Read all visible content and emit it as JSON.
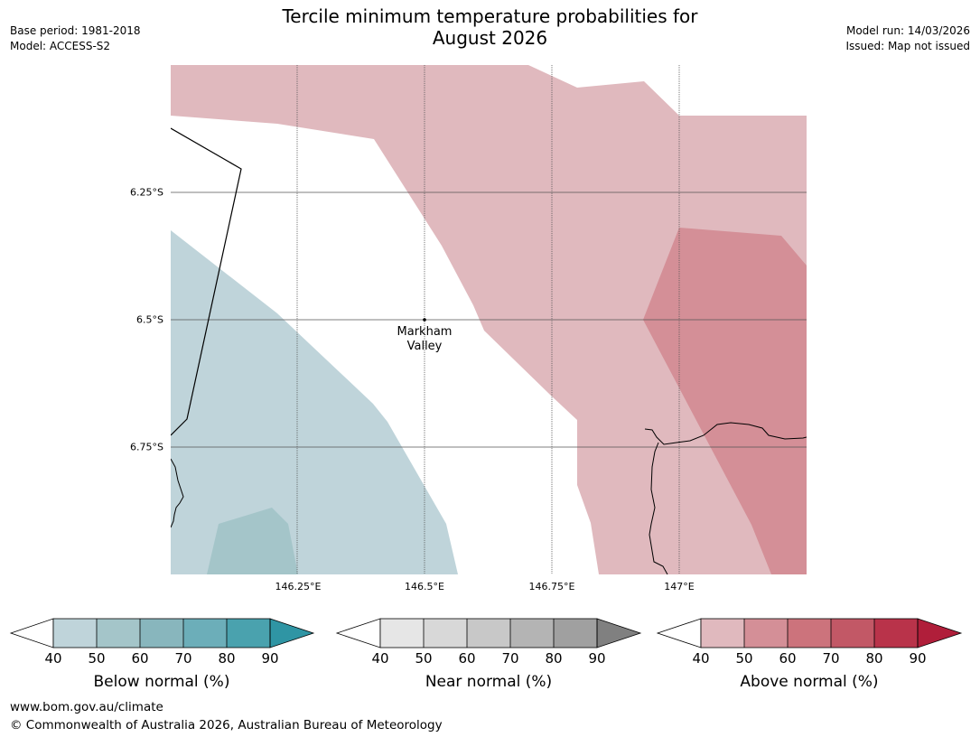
{
  "header": {
    "title_line1": "Tercile minimum temperature probabilities for",
    "title_line2": "August 2026",
    "base_period": "Base period: 1981-2018",
    "model": "Model: ACCESS-S2",
    "model_run": "Model run: 14/03/2026",
    "issued": "Issued: Map not issued"
  },
  "map": {
    "lat_labels": [
      "6.25°S",
      "6.5°S",
      "6.75°S"
    ],
    "lon_labels": [
      "146.25°E",
      "146.5°E",
      "146.75°E",
      "147°E"
    ],
    "place": {
      "line1": "Markham",
      "line2": "Valley"
    }
  },
  "legends": [
    {
      "title": "Below normal (%)",
      "ticks": [
        "40",
        "50",
        "60",
        "70",
        "80",
        "90"
      ],
      "colors": [
        "#bfd4da",
        "#a4c5c9",
        "#88b6bd",
        "#6caeb9",
        "#4aa2ae",
        "#2f95a4"
      ]
    },
    {
      "title": "Near normal (%)",
      "ticks": [
        "40",
        "50",
        "60",
        "70",
        "80",
        "90"
      ],
      "colors": [
        "#e6e6e6",
        "#d8d8d8",
        "#c8c8c8",
        "#b4b4b4",
        "#a0a0a0",
        "#808080"
      ]
    },
    {
      "title": "Above normal (%)",
      "ticks": [
        "40",
        "50",
        "60",
        "70",
        "80",
        "90"
      ],
      "colors": [
        "#e0b9be",
        "#d48f97",
        "#cc737c",
        "#c25866",
        "#b9334a",
        "#b01e3a"
      ]
    }
  ],
  "footer": {
    "url": "www.bom.gov.au/climate",
    "copyright": "© Commonwealth of Australia 2026, Australian Bureau of Meteorology"
  }
}
